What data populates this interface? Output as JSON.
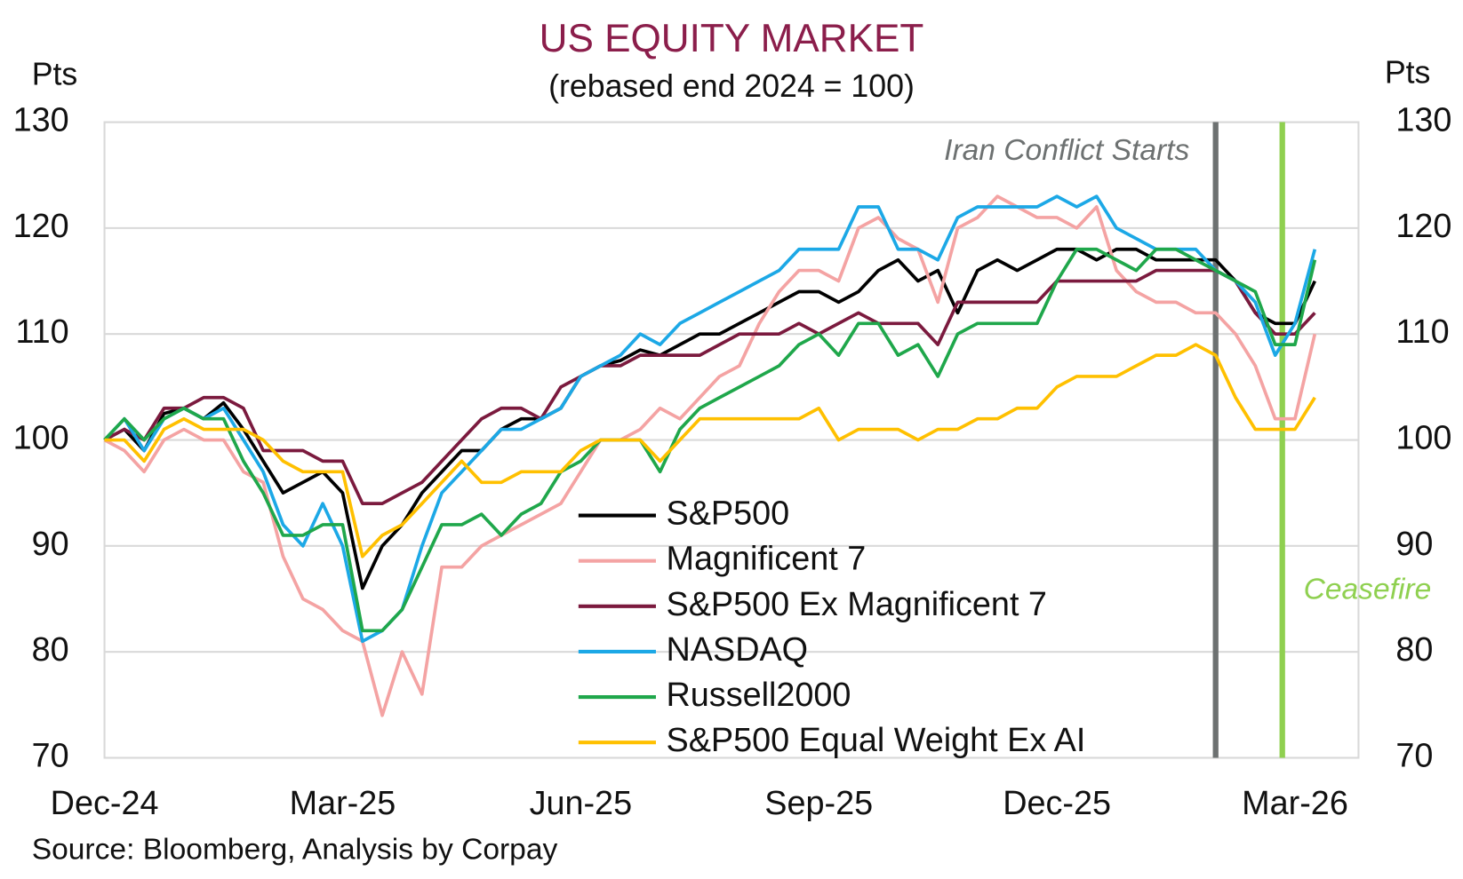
{
  "chart_data": {
    "type": "line",
    "title": "US EQUITY MARKET",
    "subtitle": "(rebased end 2024 = 100)",
    "y_label": "Pts",
    "y2_label": "Pts",
    "source": "Source: Bloomberg, Analysis by Corpay",
    "x": [
      0,
      0.25,
      0.5,
      0.75,
      1,
      1.25,
      1.5,
      1.75,
      2,
      2.25,
      2.5,
      2.75,
      3,
      3.25,
      3.5,
      3.75,
      4,
      4.25,
      4.5,
      4.75,
      5,
      5.25,
      5.5,
      5.75,
      6,
      6.25,
      6.5,
      6.75,
      7,
      7.25,
      7.5,
      7.75,
      8,
      8.25,
      8.5,
      8.75,
      9,
      9.25,
      9.5,
      9.75,
      10,
      10.25,
      10.5,
      10.75,
      11,
      11.25,
      11.5,
      11.75,
      12,
      12.25,
      12.5,
      12.75,
      13,
      13.25,
      13.5,
      13.75,
      14,
      14.25,
      14.5,
      14.75,
      15,
      15.25
    ],
    "xlim": [
      0,
      15.8
    ],
    "xticks": [
      {
        "value": 0,
        "label": "Dec-24"
      },
      {
        "value": 3,
        "label": "Mar-25"
      },
      {
        "value": 6,
        "label": "Jun-25"
      },
      {
        "value": 9,
        "label": "Sep-25"
      },
      {
        "value": 12,
        "label": "Dec-25"
      },
      {
        "value": 15,
        "label": "Mar-26"
      }
    ],
    "ylim": [
      70,
      130
    ],
    "yticks": [
      70,
      80,
      90,
      100,
      110,
      120,
      130
    ],
    "y2lim": [
      70,
      130
    ],
    "y2ticks": [
      70,
      80,
      90,
      100,
      110,
      120,
      130
    ],
    "grid": true,
    "series": [
      {
        "name": "S&P500",
        "color": "#000000",
        "values": [
          100,
          101,
          99,
          102.5,
          103,
          102,
          103.5,
          101,
          98,
          95,
          96,
          97,
          95,
          86,
          90,
          92,
          95,
          97,
          99,
          99,
          101,
          102,
          102,
          103,
          106,
          107,
          107.5,
          108.5,
          108,
          109,
          110,
          110,
          111,
          112,
          113,
          114,
          114,
          113,
          114,
          116,
          117,
          115,
          116,
          112,
          116,
          117,
          116,
          117,
          118,
          118,
          117,
          118,
          118,
          117,
          117,
          117,
          117,
          115,
          112,
          111,
          111,
          115
        ]
      },
      {
        "name": "Magnificent 7",
        "color": "#f4a3a3",
        "values": [
          100,
          99,
          97,
          100,
          101,
          100,
          100,
          97,
          96,
          89,
          85,
          84,
          82,
          81,
          74,
          80,
          76,
          88,
          88,
          90,
          91,
          92,
          93,
          94,
          97,
          100,
          100,
          101,
          103,
          102,
          104,
          106,
          107,
          111,
          114,
          116,
          116,
          115,
          120,
          121,
          119,
          118,
          113,
          120,
          121,
          123,
          122,
          121,
          121,
          120,
          122,
          116,
          114,
          113,
          113,
          112,
          112,
          110,
          107,
          102,
          102,
          110
        ]
      },
      {
        "name": "S&P500 Ex Magnificent 7",
        "color": "#7b1a3e",
        "values": [
          100,
          101,
          100,
          103,
          103,
          104,
          104,
          103,
          99,
          99,
          99,
          98,
          98,
          94,
          94,
          95,
          96,
          98,
          100,
          102,
          103,
          103,
          102,
          105,
          106,
          107,
          107,
          108,
          108,
          108,
          108,
          109,
          110,
          110,
          110,
          111,
          110,
          111,
          112,
          111,
          111,
          111,
          109,
          113,
          113,
          113,
          113,
          113,
          115,
          115,
          115,
          115,
          115,
          116,
          116,
          116,
          116,
          115,
          112,
          110,
          110,
          112
        ]
      },
      {
        "name": "NASDAQ",
        "color": "#1ca8e6",
        "values": [
          100,
          102,
          99,
          102,
          103,
          102,
          103,
          100,
          97,
          92,
          90,
          94,
          90,
          81,
          82,
          84,
          90,
          95,
          97,
          99,
          101,
          101,
          102,
          103,
          106,
          107,
          108,
          110,
          109,
          111,
          112,
          113,
          114,
          115,
          116,
          118,
          118,
          118,
          122,
          122,
          118,
          118,
          117,
          121,
          122,
          122,
          122,
          122,
          123,
          122,
          123,
          120,
          119,
          118,
          118,
          118,
          116,
          115,
          113,
          108,
          111,
          118
        ]
      },
      {
        "name": "Russell2000",
        "color": "#1fa74b",
        "values": [
          100,
          102,
          100,
          102,
          103,
          102,
          102,
          98,
          95,
          91,
          91,
          92,
          92,
          82,
          82,
          84,
          88,
          92,
          92,
          93,
          91,
          93,
          94,
          97,
          98,
          100,
          100,
          100,
          97,
          101,
          103,
          104,
          105,
          106,
          107,
          109,
          110,
          108,
          111,
          111,
          108,
          109,
          106,
          110,
          111,
          111,
          111,
          111,
          115,
          118,
          118,
          117,
          116,
          118,
          118,
          117,
          116,
          115,
          114,
          109,
          109,
          117
        ]
      },
      {
        "name": "S&P500 Equal Weight Ex AI",
        "color": "#ffc000",
        "values": [
          100,
          100,
          98,
          101,
          102,
          101,
          101,
          101,
          100,
          98,
          97,
          97,
          97,
          89,
          91,
          92,
          94,
          96,
          98,
          96,
          96,
          97,
          97,
          97,
          99,
          100,
          100,
          100,
          98,
          100,
          102,
          102,
          102,
          102,
          102,
          102,
          103,
          100,
          101,
          101,
          101,
          100,
          101,
          101,
          102,
          102,
          103,
          103,
          105,
          106,
          106,
          106,
          107,
          108,
          108,
          109,
          108,
          104,
          101,
          101,
          101,
          104
        ]
      }
    ],
    "annotations": [
      {
        "text": "Iran Conflict Starts",
        "x": 14.0,
        "color": "#6d7171"
      },
      {
        "text": "Ceasefire",
        "x": 14.84,
        "color": "#8fd050"
      }
    ]
  }
}
